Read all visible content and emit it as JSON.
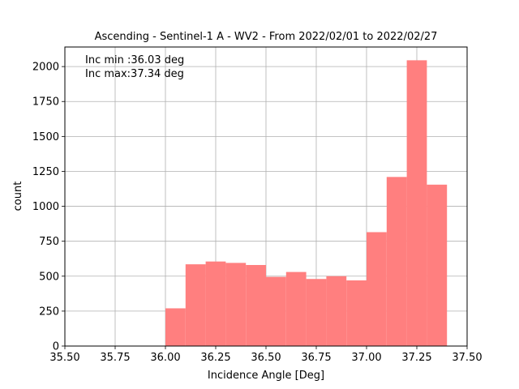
{
  "chart_data": {
    "type": "bar",
    "title": "Ascending - Sentinel-1 A - WV2 - From 2022/02/01 to 2022/02/27",
    "xlabel": "Incidence Angle [Deg]",
    "ylabel": "count",
    "xlim": [
      35.5,
      37.5
    ],
    "ylim": [
      0,
      2140
    ],
    "xticks": [
      "35.50",
      "35.75",
      "36.00",
      "36.25",
      "36.50",
      "36.75",
      "37.00",
      "37.25",
      "37.50"
    ],
    "yticks": [
      "0",
      "250",
      "500",
      "750",
      "1000",
      "1250",
      "1500",
      "1750",
      "2000"
    ],
    "grid": true,
    "bar_color": "#ff7f7f",
    "annotations": [
      "Inc min :36.03 deg",
      "Inc max:37.34 deg"
    ],
    "bins": [
      {
        "x0": 36.0,
        "x1": 36.1,
        "value": 270
      },
      {
        "x0": 36.1,
        "x1": 36.2,
        "value": 585
      },
      {
        "x0": 36.2,
        "x1": 36.3,
        "value": 605
      },
      {
        "x0": 36.3,
        "x1": 36.4,
        "value": 595
      },
      {
        "x0": 36.4,
        "x1": 36.5,
        "value": 580
      },
      {
        "x0": 36.5,
        "x1": 36.6,
        "value": 495
      },
      {
        "x0": 36.6,
        "x1": 36.7,
        "value": 530
      },
      {
        "x0": 36.7,
        "x1": 36.8,
        "value": 480
      },
      {
        "x0": 36.8,
        "x1": 36.9,
        "value": 500
      },
      {
        "x0": 36.9,
        "x1": 37.0,
        "value": 470
      },
      {
        "x0": 37.0,
        "x1": 37.1,
        "value": 815
      },
      {
        "x0": 37.1,
        "x1": 37.2,
        "value": 1210
      },
      {
        "x0": 37.2,
        "x1": 37.3,
        "value": 2045
      },
      {
        "x0": 37.3,
        "x1": 37.4,
        "value": 1155
      }
    ]
  }
}
